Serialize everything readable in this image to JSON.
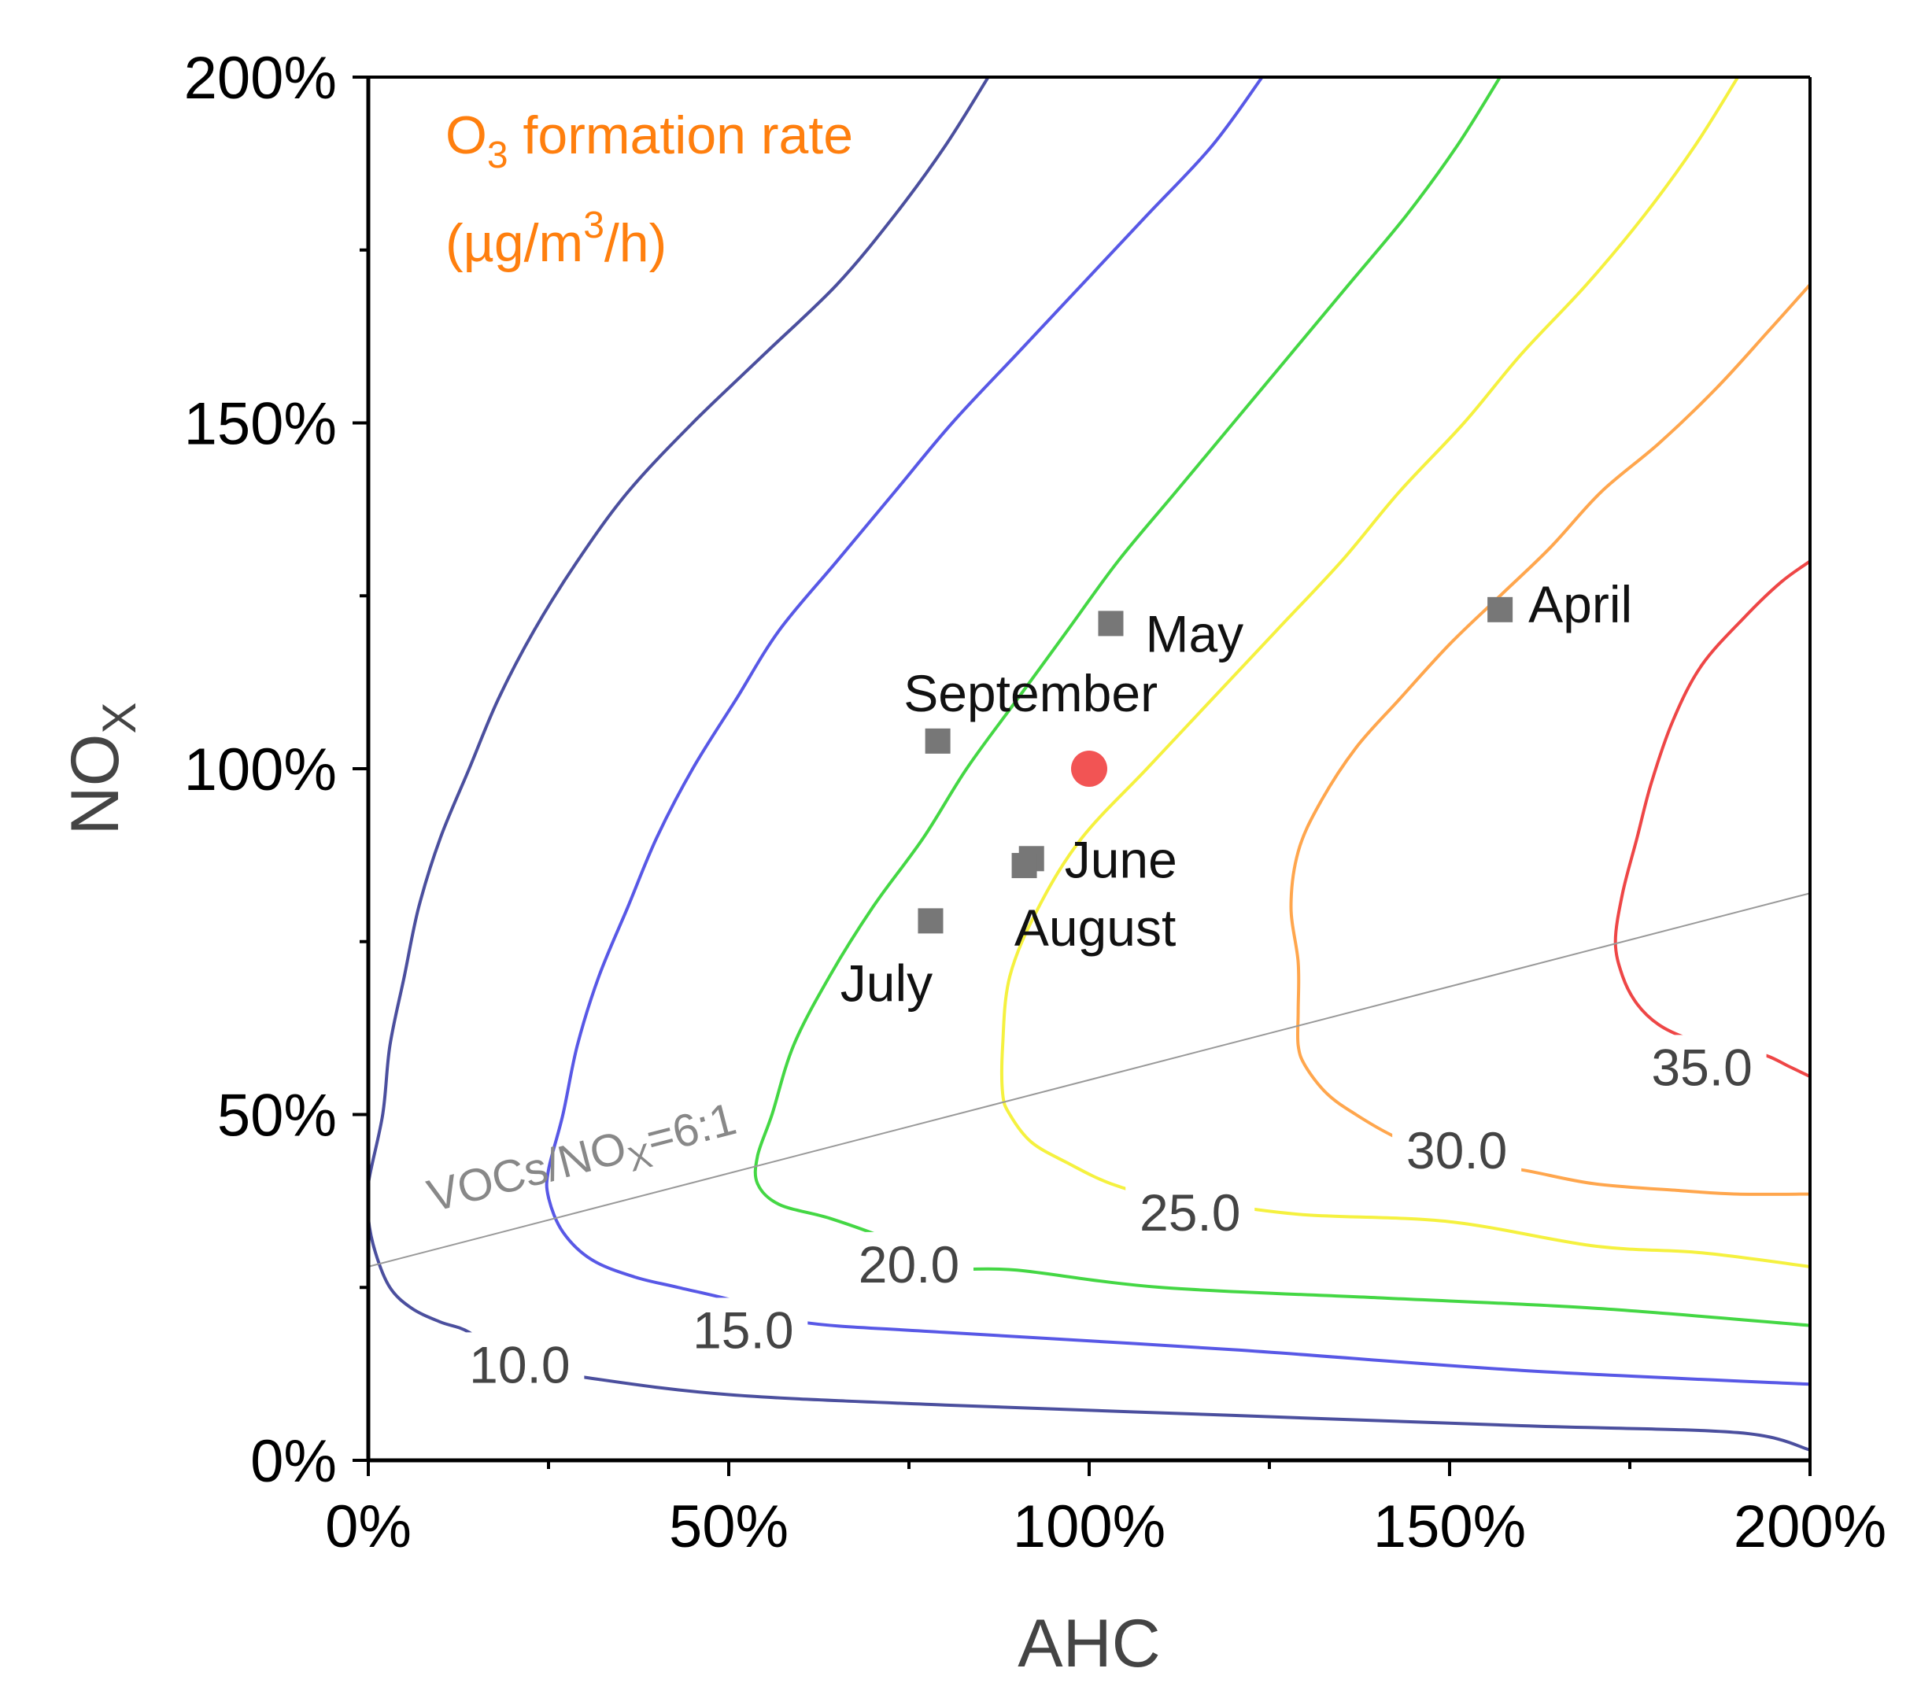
{
  "chart_data": {
    "type": "contour",
    "xlabel": "AHC",
    "ylabel": "NO",
    "ylabel_sub": "X",
    "xlim": [
      0,
      200
    ],
    "ylim": [
      0,
      200
    ],
    "x_ticks": [
      0,
      50,
      100,
      150,
      200
    ],
    "y_ticks": [
      0,
      50,
      100,
      150,
      200
    ],
    "x_tick_labels": [
      "0%",
      "50%",
      "100%",
      "150%",
      "200%"
    ],
    "y_tick_labels": [
      "0%",
      "50%",
      "100%",
      "150%",
      "200%"
    ],
    "annotation": {
      "line1_pre": "O",
      "line1_sub": "3",
      "line1_post": " formation rate",
      "line2_pre": "(µg/m",
      "line2_sup": "3",
      "line2_post": "/h)",
      "color": "#FF7F0E"
    },
    "ratio_line": {
      "label_pre": "VOCs/NO",
      "label_sub": "X",
      "label_post": "=6:1",
      "color": "#999999",
      "from": [
        0,
        28
      ],
      "to": [
        200,
        82
      ]
    },
    "contours": [
      {
        "level": "10.0",
        "color": "#4B4F9E",
        "points": [
          [
            86,
            200
          ],
          [
            80,
            190
          ],
          [
            73,
            180
          ],
          [
            65,
            170
          ],
          [
            55,
            160
          ],
          [
            45,
            150
          ],
          [
            36,
            140
          ],
          [
            29,
            130
          ],
          [
            23,
            120
          ],
          [
            18,
            110
          ],
          [
            14,
            100
          ],
          [
            10,
            90
          ],
          [
            7,
            80
          ],
          [
            5,
            70
          ],
          [
            3,
            60
          ],
          [
            2,
            50
          ],
          [
            0,
            40
          ],
          [
            0,
            35
          ],
          [
            1,
            30
          ],
          [
            3,
            25
          ],
          [
            6,
            22
          ],
          [
            10,
            20
          ],
          [
            14,
            18.5
          ],
          [
            20,
            14
          ],
          [
            30,
            12
          ],
          [
            50,
            9.5
          ],
          [
            80,
            8
          ],
          [
            120,
            6.5
          ],
          [
            160,
            5
          ],
          [
            190,
            4
          ],
          [
            200,
            1.5
          ]
        ],
        "label_pos": [
          21,
          13.5
        ]
      },
      {
        "level": "15.0",
        "color": "#5858E6",
        "points": [
          [
            124,
            200
          ],
          [
            117,
            190
          ],
          [
            108,
            180
          ],
          [
            99,
            170
          ],
          [
            90,
            160
          ],
          [
            81,
            150
          ],
          [
            73,
            140
          ],
          [
            65,
            130
          ],
          [
            57,
            120
          ],
          [
            51,
            110
          ],
          [
            45,
            100
          ],
          [
            40,
            90
          ],
          [
            36,
            80
          ],
          [
            32,
            70
          ],
          [
            29,
            60
          ],
          [
            27,
            50
          ],
          [
            25,
            42
          ],
          [
            25,
            38
          ],
          [
            27,
            33
          ],
          [
            31,
            29
          ],
          [
            37,
            26.5
          ],
          [
            43,
            25
          ],
          [
            51,
            23
          ],
          [
            60,
            20
          ],
          [
            80,
            18.5
          ],
          [
            120,
            16
          ],
          [
            160,
            13
          ],
          [
            200,
            11
          ]
        ],
        "label_pos": [
          52,
          18.5
        ]
      },
      {
        "level": "20.0",
        "color": "#44D744",
        "points": [
          [
            157,
            200
          ],
          [
            151,
            190
          ],
          [
            144,
            180
          ],
          [
            136,
            170
          ],
          [
            128,
            160
          ],
          [
            120,
            150
          ],
          [
            112,
            140
          ],
          [
            104,
            130
          ],
          [
            97,
            120
          ],
          [
            90,
            110
          ],
          [
            83,
            100
          ],
          [
            77,
            90
          ],
          [
            70,
            80
          ],
          [
            64,
            70
          ],
          [
            59,
            60
          ],
          [
            56,
            50
          ],
          [
            54,
            44
          ],
          [
            54,
            40
          ],
          [
            57,
            37
          ],
          [
            64,
            35
          ],
          [
            72,
            32
          ],
          [
            80,
            28
          ],
          [
            90,
            27.5
          ],
          [
            110,
            25
          ],
          [
            140,
            23.5
          ],
          [
            170,
            22
          ],
          [
            200,
            19.5
          ]
        ],
        "label_pos": [
          75,
          28
        ]
      },
      {
        "level": "25.0",
        "color": "#F5F13F",
        "points": [
          [
            190,
            200
          ],
          [
            184,
            190
          ],
          [
            177,
            180
          ],
          [
            169,
            170
          ],
          [
            160,
            160
          ],
          [
            152,
            150
          ],
          [
            143,
            140
          ],
          [
            135,
            130
          ],
          [
            126,
            120
          ],
          [
            117,
            110
          ],
          [
            108,
            100
          ],
          [
            99,
            90
          ],
          [
            93,
            80
          ],
          [
            89,
            70
          ],
          [
            88,
            60
          ],
          [
            88,
            53
          ],
          [
            89,
            50
          ],
          [
            92,
            46
          ],
          [
            97,
            43
          ],
          [
            103,
            40
          ],
          [
            110,
            38
          ],
          [
            118,
            37
          ],
          [
            130,
            35.5
          ],
          [
            150,
            34.5
          ],
          [
            170,
            31
          ],
          [
            185,
            30
          ],
          [
            200,
            28
          ]
        ],
        "label_pos": [
          114,
          35.5
        ]
      },
      {
        "level": "30.0",
        "color": "#FFA64D",
        "points": [
          [
            200,
            170
          ],
          [
            194,
            163
          ],
          [
            187,
            155
          ],
          [
            179,
            147
          ],
          [
            171,
            140
          ],
          [
            164,
            132
          ],
          [
            157,
            125
          ],
          [
            150,
            118
          ],
          [
            143,
            110
          ],
          [
            137,
            103
          ],
          [
            132,
            95
          ],
          [
            129,
            88
          ],
          [
            128,
            80
          ],
          [
            129,
            72
          ],
          [
            129,
            65
          ],
          [
            129,
            60
          ],
          [
            130,
            57
          ],
          [
            133,
            53
          ],
          [
            137,
            50
          ],
          [
            142,
            47
          ],
          [
            147,
            45
          ],
          [
            152,
            43
          ],
          [
            160,
            42
          ],
          [
            170,
            40
          ],
          [
            182,
            39
          ],
          [
            190,
            38.5
          ],
          [
            200,
            38.5
          ]
        ],
        "label_pos": [
          151,
          44.5
        ]
      },
      {
        "level": "35.0",
        "color": "#EE4646",
        "points": [
          [
            200,
            130
          ],
          [
            196,
            127
          ],
          [
            191,
            122
          ],
          [
            185,
            115
          ],
          [
            181,
            107
          ],
          [
            178,
            98
          ],
          [
            176,
            90
          ],
          [
            174,
            82
          ],
          [
            173,
            75
          ],
          [
            174,
            70
          ],
          [
            176,
            66
          ],
          [
            179,
            63
          ],
          [
            183,
            61
          ],
          [
            187,
            60
          ],
          [
            190,
            59.5
          ],
          [
            194,
            58.5
          ],
          [
            197,
            57
          ],
          [
            200,
            55.5
          ]
        ],
        "label_pos": [
          185,
          56.5
        ]
      }
    ],
    "series": [
      {
        "name": "April",
        "x": 157,
        "y": 123
      },
      {
        "name": "May",
        "x": 103,
        "y": 121
      },
      {
        "name": "September",
        "x": 79,
        "y": 104
      },
      {
        "name": "June",
        "x": 92,
        "y": 87
      },
      {
        "name": "August",
        "x": 91,
        "y": 86
      },
      {
        "name": "July",
        "x": 78,
        "y": 78
      }
    ],
    "reference_point": {
      "x": 100,
      "y": 100,
      "color": "#F25454"
    },
    "marker_color": "#777777"
  }
}
